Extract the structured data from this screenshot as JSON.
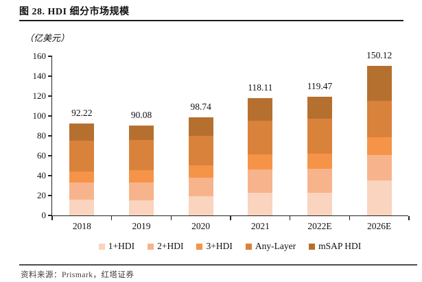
{
  "header": {
    "title": "图 28. HDI 细分市场规模"
  },
  "chart_data": {
    "type": "bar",
    "stacked": true,
    "title": "图 28. HDI 细分市场规模",
    "unit_label": "（亿美元）",
    "categories": [
      "2018",
      "2019",
      "2020",
      "2021",
      "2022E",
      "2026E"
    ],
    "totals": [
      92.22,
      90.08,
      98.74,
      118.11,
      119.47,
      150.12
    ],
    "total_labels": [
      "92.22",
      "90.08",
      "98.74",
      "118.11",
      "119.47",
      "150.12"
    ],
    "series": [
      {
        "name": "1+HDI",
        "color": "#FAD4BE",
        "values": [
          15.9,
          15.0,
          19.4,
          22.6,
          22.8,
          34.9
        ]
      },
      {
        "name": "2+HDI",
        "color": "#F7B48C",
        "values": [
          17.0,
          18.3,
          18.8,
          23.6,
          23.9,
          26.1
        ]
      },
      {
        "name": "3+HDI",
        "color": "#F59449",
        "values": [
          11.4,
          12.2,
          12.5,
          15.4,
          15.6,
          17.5
        ]
      },
      {
        "name": "Any-Layer",
        "color": "#D9823C",
        "values": [
          31.2,
          30.3,
          29.2,
          33.7,
          34.8,
          36.8
        ]
      },
      {
        "name": "mSAP HDI",
        "color": "#B5702F",
        "values": [
          16.7,
          14.3,
          18.8,
          22.8,
          22.4,
          34.8
        ]
      }
    ],
    "ylim": [
      0,
      160
    ],
    "ytick_step": 20,
    "ytick_labels": [
      "0",
      "20",
      "40",
      "60",
      "80",
      "100",
      "120",
      "140",
      "160"
    ],
    "legend_position": "bottom",
    "grid": false,
    "axis_color": "#222222"
  },
  "footer": {
    "source": "资料来源：Prismark，红塔证券"
  }
}
